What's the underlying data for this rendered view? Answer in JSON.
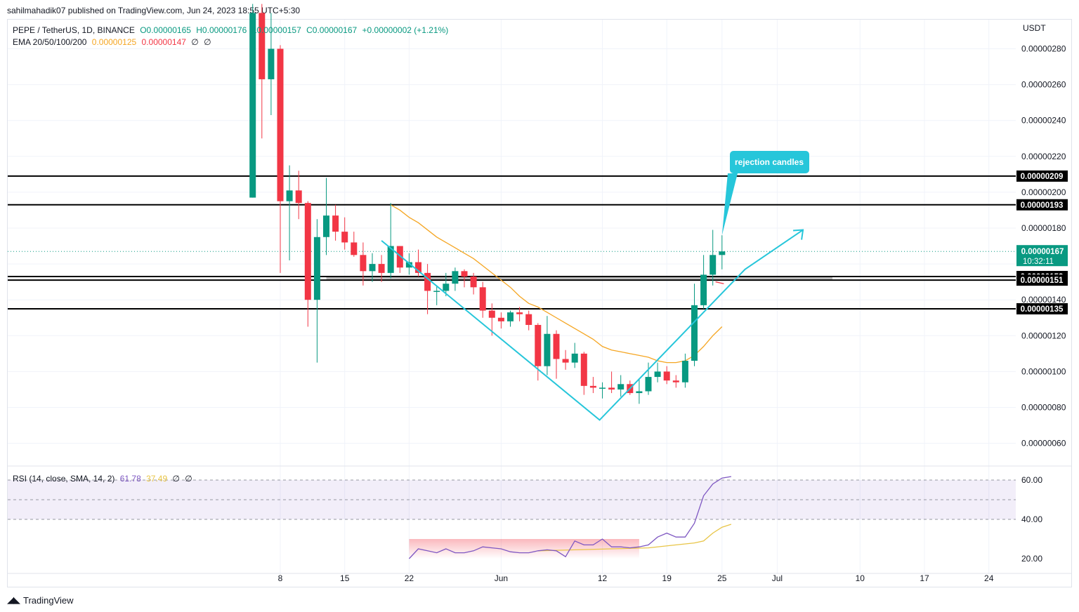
{
  "header": {
    "publisher_line": "sahilmahadik07 published on TradingView.com, Jun 24, 2023 18:55 UTC+5:30"
  },
  "legend": {
    "symbol": "PEPE / TetherUS, 1D, BINANCE",
    "open": "O0.00000165",
    "high": "H0.00000176",
    "low": "L0.00000157",
    "close": "C0.00000167",
    "change": "+0.00000002 (+1.21%)",
    "ema_title": "EMA 20/50/100/200",
    "ema20": "0.00000125",
    "ema50": "0.00000147",
    "ema100": "∅",
    "ema200": "∅"
  },
  "rsi_legend": {
    "title": "RSI (14, close, SMA, 14, 2)",
    "rsi": "61.78",
    "sma": "37.49",
    "v3": "∅",
    "v4": "∅"
  },
  "footer": {
    "brand": "TradingView"
  },
  "colors": {
    "up": "#089981",
    "down": "#f23645",
    "ema20": "#f5a623",
    "pattern": "#26c6da",
    "rsi": "#7e57c2",
    "rsi_ma": "#e8c547"
  },
  "chart_data": {
    "type": "candlestick",
    "currency_label": "USDT",
    "y_ticks": [
      "0.00000280",
      "0.00000260",
      "0.00000240",
      "0.00000220",
      "0.00000200",
      "0.00000180",
      "0.00000140",
      "0.00000120",
      "0.00000100",
      "0.00000080",
      "0.00000060"
    ],
    "x_ticks": [
      {
        "label": "8",
        "day": 0
      },
      {
        "label": "15",
        "day": 7
      },
      {
        "label": "22",
        "day": 14
      },
      {
        "label": "Jun",
        "day": 24
      },
      {
        "label": "12",
        "day": 35
      },
      {
        "label": "19",
        "day": 42
      },
      {
        "label": "25",
        "day": 48
      },
      {
        "label": "Jul",
        "day": 54
      },
      {
        "label": "10",
        "day": 63
      },
      {
        "label": "17",
        "day": 70
      },
      {
        "label": "24",
        "day": 77
      }
    ],
    "candles": [
      [
        -3,
        1.97,
        3.05,
        1.97,
        3.0
      ],
      [
        -2,
        3.0,
        3.05,
        2.3,
        2.63
      ],
      [
        -1,
        2.63,
        3.0,
        2.43,
        2.8
      ],
      [
        0,
        2.8,
        2.82,
        1.55,
        1.95
      ],
      [
        1,
        1.95,
        2.15,
        1.62,
        2.01
      ],
      [
        2,
        2.01,
        2.12,
        1.85,
        1.94
      ],
      [
        3,
        1.94,
        1.95,
        1.25,
        1.4
      ],
      [
        4,
        1.4,
        1.85,
        1.05,
        1.75
      ],
      [
        5,
        1.75,
        2.08,
        1.65,
        1.87
      ],
      [
        6,
        1.87,
        1.93,
        1.73,
        1.78
      ],
      [
        7,
        1.78,
        1.86,
        1.68,
        1.72
      ],
      [
        8,
        1.72,
        1.78,
        1.64,
        1.65
      ],
      [
        9,
        1.65,
        1.72,
        1.48,
        1.56
      ],
      [
        10,
        1.56,
        1.66,
        1.5,
        1.6
      ],
      [
        11,
        1.6,
        1.65,
        1.5,
        1.55
      ],
      [
        12,
        1.55,
        1.94,
        1.52,
        1.7
      ],
      [
        13,
        1.7,
        1.7,
        1.55,
        1.58
      ],
      [
        14,
        1.58,
        1.66,
        1.54,
        1.61
      ],
      [
        15,
        1.61,
        1.68,
        1.53,
        1.55
      ],
      [
        16,
        1.55,
        1.6,
        1.32,
        1.45
      ],
      [
        17,
        1.45,
        1.48,
        1.37,
        1.45
      ],
      [
        18,
        1.45,
        1.55,
        1.42,
        1.49
      ],
      [
        19,
        1.49,
        1.58,
        1.45,
        1.56
      ],
      [
        20,
        1.56,
        1.57,
        1.47,
        1.53
      ],
      [
        21,
        1.53,
        1.55,
        1.43,
        1.47
      ],
      [
        22,
        1.47,
        1.5,
        1.3,
        1.34
      ],
      [
        23,
        1.34,
        1.38,
        1.2,
        1.3
      ],
      [
        24,
        1.3,
        1.33,
        1.24,
        1.28
      ],
      [
        25,
        1.28,
        1.34,
        1.25,
        1.33
      ],
      [
        26,
        1.33,
        1.36,
        1.28,
        1.32
      ],
      [
        27,
        1.32,
        1.34,
        1.23,
        1.26
      ],
      [
        28,
        1.26,
        1.27,
        0.95,
        1.03
      ],
      [
        29,
        1.03,
        1.31,
        0.98,
        1.21
      ],
      [
        30,
        1.21,
        1.23,
        0.96,
        1.07
      ],
      [
        31,
        1.07,
        1.12,
        1.01,
        1.05
      ],
      [
        32,
        1.05,
        1.16,
        1.02,
        1.1
      ],
      [
        33,
        1.1,
        1.11,
        0.87,
        0.92
      ],
      [
        34,
        0.92,
        0.97,
        0.88,
        0.91
      ],
      [
        35,
        0.91,
        0.94,
        0.85,
        0.91
      ],
      [
        36,
        0.91,
        1.0,
        0.88,
        0.9
      ],
      [
        37,
        0.9,
        0.98,
        0.86,
        0.93
      ],
      [
        38,
        0.93,
        0.95,
        0.87,
        0.88
      ],
      [
        39,
        0.88,
        0.96,
        0.82,
        0.89
      ],
      [
        40,
        0.89,
        1.05,
        0.87,
        0.97
      ],
      [
        41,
        0.97,
        1.05,
        0.94,
        1.0
      ],
      [
        42,
        1.0,
        1.03,
        0.93,
        0.95
      ],
      [
        43,
        0.95,
        0.98,
        0.91,
        0.94
      ],
      [
        44,
        0.94,
        1.1,
        0.91,
        1.06
      ],
      [
        45,
        1.06,
        1.49,
        1.03,
        1.37
      ],
      [
        46,
        1.37,
        1.65,
        1.35,
        1.54
      ],
      [
        47,
        1.54,
        1.79,
        1.48,
        1.65
      ],
      [
        48,
        1.65,
        1.76,
        1.57,
        1.67
      ]
    ],
    "ema20": [
      [
        12,
        1.93
      ],
      [
        13,
        1.9
      ],
      [
        14,
        1.86
      ],
      [
        15,
        1.83
      ],
      [
        16,
        1.79
      ],
      [
        17,
        1.75
      ],
      [
        18,
        1.72
      ],
      [
        19,
        1.69
      ],
      [
        20,
        1.66
      ],
      [
        21,
        1.63
      ],
      [
        22,
        1.59
      ],
      [
        23,
        1.55
      ],
      [
        24,
        1.51
      ],
      [
        25,
        1.47
      ],
      [
        26,
        1.42
      ],
      [
        27,
        1.38
      ],
      [
        28,
        1.36
      ],
      [
        29,
        1.33
      ],
      [
        30,
        1.3
      ],
      [
        31,
        1.27
      ],
      [
        32,
        1.24
      ],
      [
        33,
        1.21
      ],
      [
        34,
        1.18
      ],
      [
        35,
        1.14
      ],
      [
        36,
        1.12
      ],
      [
        37,
        1.11
      ],
      [
        38,
        1.1
      ],
      [
        39,
        1.09
      ],
      [
        40,
        1.08
      ],
      [
        41,
        1.06
      ],
      [
        42,
        1.05
      ],
      [
        43,
        1.05
      ],
      [
        44,
        1.06
      ],
      [
        45,
        1.09
      ],
      [
        46,
        1.14
      ],
      [
        47,
        1.2
      ],
      [
        48,
        1.25
      ]
    ],
    "ema50_value": 1.5,
    "horizontal_levels": [
      {
        "value": 2.09,
        "label": "0.00000209"
      },
      {
        "value": 1.93,
        "label": "0.00000193"
      },
      {
        "value": 1.53,
        "label": "0.00000153"
      },
      {
        "value": 1.51,
        "label": "0.00000151"
      },
      {
        "value": 1.35,
        "label": "0.00000135"
      }
    ],
    "current_price": {
      "value": 1.67,
      "label": "0.00000167",
      "countdown": "10:32:11"
    },
    "support_zone": {
      "from_day": 5,
      "to_day": 60,
      "low": 1.51,
      "high": 1.53
    },
    "pattern_line": [
      [
        11,
        1.73
      ],
      [
        34.7,
        0.73
      ],
      [
        50.5,
        1.57
      ]
    ],
    "pattern_arrow_end": [
      56.8,
      1.79
    ],
    "annotation": {
      "text": "rejection candles",
      "anchor_day": 48,
      "anchor_value": 1.76
    },
    "rsi": {
      "levels": [
        "60.00",
        "40.00",
        "20.00"
      ],
      "upper": 60,
      "lower": 40,
      "rsi_values": [
        [
          14,
          20
        ],
        [
          15,
          25
        ],
        [
          16,
          24
        ],
        [
          17,
          23
        ],
        [
          18,
          25
        ],
        [
          19,
          23
        ],
        [
          20,
          23
        ],
        [
          21,
          24
        ],
        [
          22,
          26
        ],
        [
          23,
          25.5
        ],
        [
          24,
          25
        ],
        [
          25,
          23.5
        ],
        [
          26,
          23
        ],
        [
          27,
          23
        ],
        [
          28,
          24
        ],
        [
          29,
          24.5
        ],
        [
          30,
          24
        ],
        [
          31,
          21
        ],
        [
          32,
          29
        ],
        [
          33,
          27
        ],
        [
          34,
          27
        ],
        [
          35,
          30
        ],
        [
          36,
          26
        ],
        [
          37,
          26
        ],
        [
          38,
          25.5
        ],
        [
          39,
          26
        ],
        [
          40,
          27
        ],
        [
          41,
          31
        ],
        [
          42,
          33
        ],
        [
          43,
          31
        ],
        [
          44,
          31
        ],
        [
          45,
          38
        ],
        [
          46,
          52
        ],
        [
          47,
          58
        ],
        [
          48,
          61
        ],
        [
          49,
          61.8
        ]
      ],
      "sma_values": [
        [
          28,
          24
        ],
        [
          32,
          24.5
        ],
        [
          36,
          25
        ],
        [
          40,
          25.5
        ],
        [
          43,
          27
        ],
        [
          45,
          28
        ],
        [
          46,
          29
        ],
        [
          47,
          33
        ],
        [
          48,
          36
        ],
        [
          49,
          37.5
        ]
      ],
      "oversold_fill": {
        "from_day": 14,
        "to_day": 39
      }
    }
  }
}
